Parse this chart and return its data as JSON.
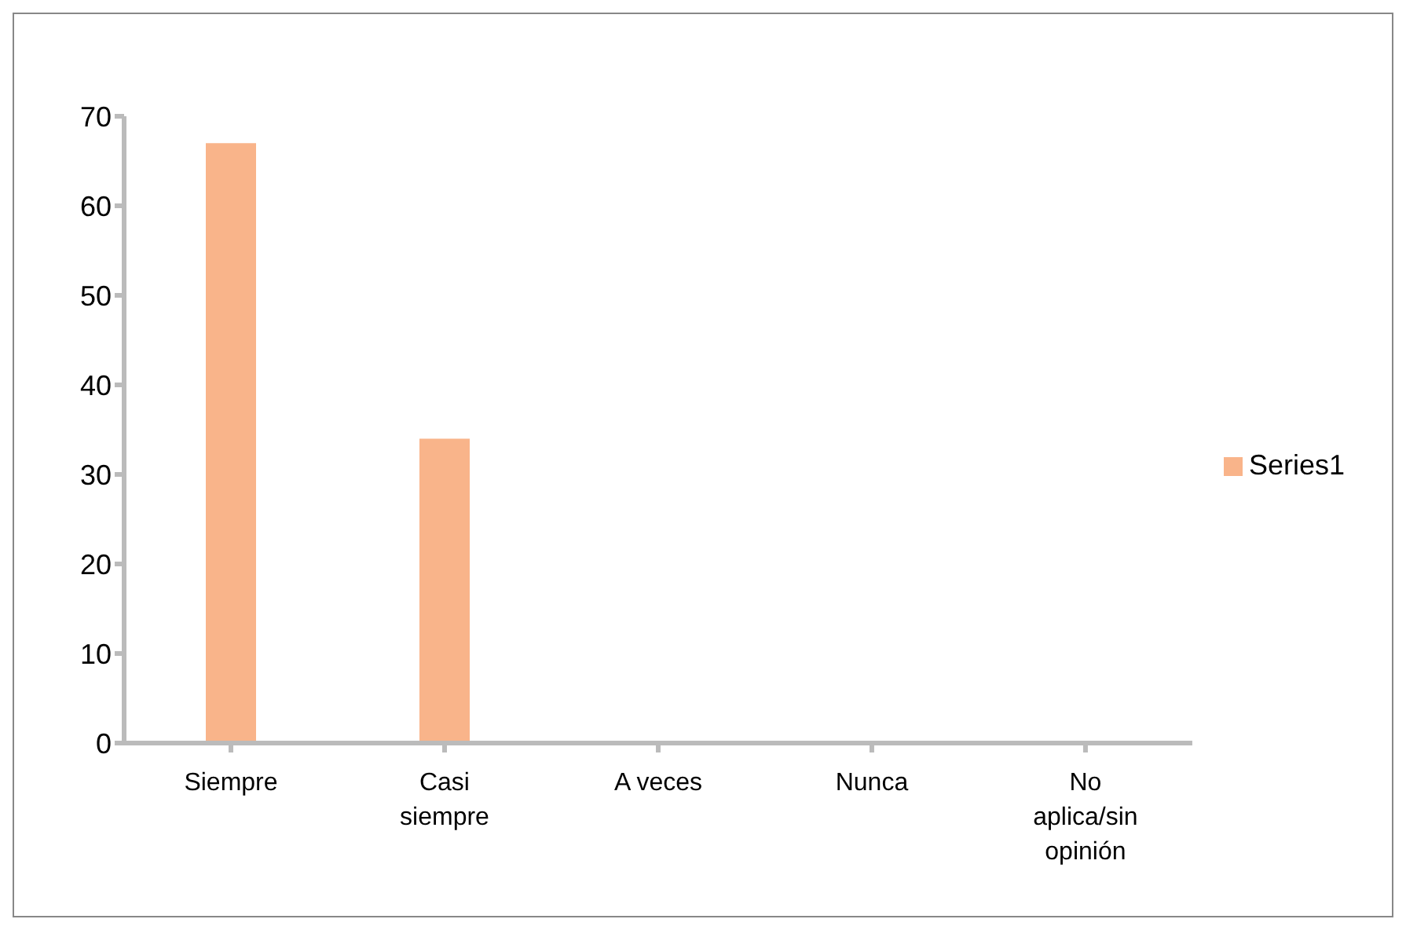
{
  "chart_data": {
    "type": "bar",
    "categories": [
      "Siempre",
      "Casi siempre",
      "A veces",
      "Nunca",
      "No aplica/sin opinión"
    ],
    "series": [
      {
        "name": "Series1",
        "color": "#f9b48a",
        "values": [
          67,
          34,
          0,
          0,
          0
        ]
      }
    ],
    "ylim": [
      0,
      70
    ],
    "yticks": [
      0,
      10,
      20,
      30,
      40,
      50,
      60,
      70
    ],
    "legend": "right"
  }
}
